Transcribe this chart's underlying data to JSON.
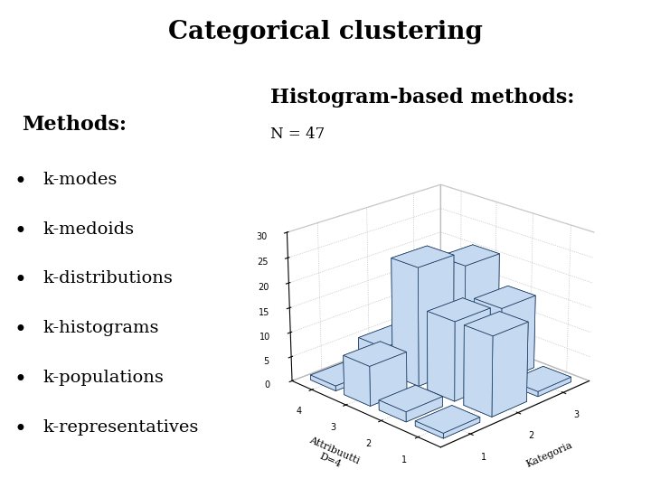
{
  "title": "Categorical clustering",
  "methods_label": "Methods:",
  "methods_items": [
    "k-modes",
    "k-medoids",
    "k-distributions",
    "k-histograms",
    "k-populations",
    "k-representatives"
  ],
  "histogram_label": "Histogram-based methods:",
  "n_label": "N = 47",
  "bar_data": [
    [
      1,
      2,
      8,
      1
    ],
    [
      16,
      16,
      24,
      5
    ],
    [
      1,
      15,
      21,
      16
    ]
  ],
  "x_label": "Kategoria",
  "y_label": "Attribuutti\nD=4",
  "z_ticks": [
    0,
    5,
    10,
    15,
    20,
    25,
    30
  ],
  "bar_color_face": "#c5d9f1",
  "bar_color_edge": "#17375e",
  "background_color": "#ffffff",
  "title_fontsize": 20,
  "methods_fontsize": 16,
  "items_fontsize": 14,
  "histogram_fontsize": 16,
  "n_fontsize": 12,
  "tick_fontsize": 7,
  "axis_label_fontsize": 8
}
